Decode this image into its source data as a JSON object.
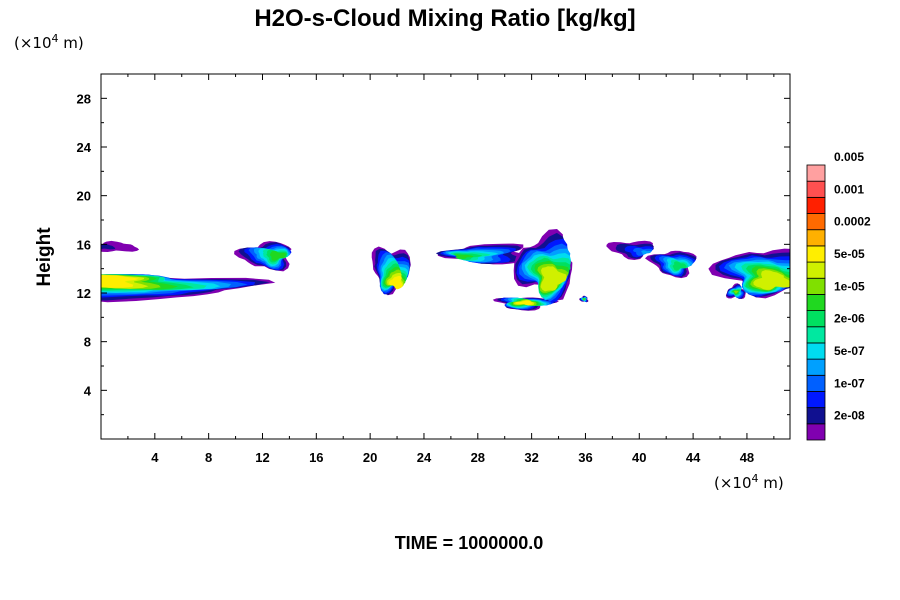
{
  "chart_data": {
    "type": "heatmap",
    "title": "H2O-s-Cloud Mixing Ratio [kg/kg]",
    "ylabel": "Height",
    "x_unit": "(×10^4 m)",
    "y_unit": "(×10^4 m)",
    "unit_prefix": "(×10",
    "unit_exp": "4",
    "unit_suffix": " m)",
    "xlim": [
      0,
      51.2
    ],
    "ylim": [
      0,
      30
    ],
    "x_ticks": [
      4,
      8,
      12,
      16,
      20,
      24,
      28,
      32,
      36,
      40,
      44,
      48
    ],
    "y_ticks": [
      4,
      8,
      12,
      16,
      20,
      24,
      28
    ],
    "time_label": "TIME = 1000000.0",
    "colorbar": {
      "colors": [
        "#8000b0",
        "#101090",
        "#0018ff",
        "#0060ff",
        "#00a0ff",
        "#00dcf0",
        "#00e8a0",
        "#00e060",
        "#20d820",
        "#80e000",
        "#d0f000",
        "#ffee00",
        "#ffb000",
        "#ff6a00",
        "#ff2000",
        "#ff5050",
        "#ffa0a0"
      ],
      "labels": [
        "2e-08",
        "1e-07",
        "5e-07",
        "2e-06",
        "1e-05",
        "5e-05",
        "0.0002",
        "0.001",
        "0.005"
      ]
    },
    "cloud_features": [
      {
        "x_center": 1,
        "z_center": 15.8,
        "peak_level": 1
      },
      {
        "x_center": 3.5,
        "z_center": 12.6,
        "peak_level": 11
      },
      {
        "x_center": 12.3,
        "z_center": 15.2,
        "peak_level": 8
      },
      {
        "x_center": 21.5,
        "z_center": 14.3,
        "peak_level": 11
      },
      {
        "x_center": 28.8,
        "z_center": 15.3,
        "peak_level": 8
      },
      {
        "x_center": 31.5,
        "z_center": 11.2,
        "peak_level": 11
      },
      {
        "x_center": 33.0,
        "z_center": 14.5,
        "peak_level": 10
      },
      {
        "x_center": 35.9,
        "z_center": 11.5,
        "peak_level": 9
      },
      {
        "x_center": 39.4,
        "z_center": 15.7,
        "peak_level": 4
      },
      {
        "x_center": 42.5,
        "z_center": 14.6,
        "peak_level": 7
      },
      {
        "x_center": 47.2,
        "z_center": 12.1,
        "peak_level": 9
      },
      {
        "x_center": 49.0,
        "z_center": 14.0,
        "peak_level": 10
      }
    ]
  }
}
